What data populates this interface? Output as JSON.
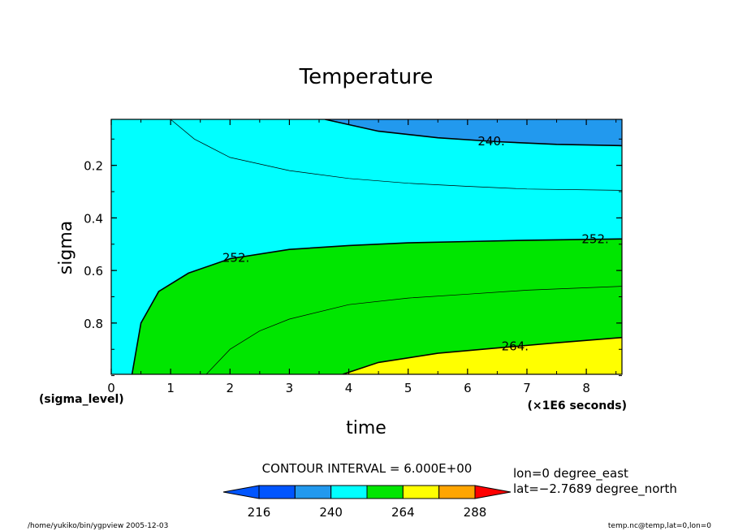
{
  "chart_data": {
    "type": "contour",
    "title": "Temperature",
    "xlabel": "time",
    "ylabel": "sigma",
    "x_units_note": "(×1E6 seconds)",
    "y_units_note": "(sigma_level)",
    "xlim": [
      0,
      8.6
    ],
    "ylim_inverted": [
      0.025,
      0.995
    ],
    "x_ticks": [
      "0",
      "1",
      "2",
      "3",
      "4",
      "5",
      "6",
      "7",
      "8"
    ],
    "y_ticks": [
      "0.2",
      "0.4",
      "0.6",
      "0.8"
    ],
    "contour_interval": 6,
    "contour_levels": [
      {
        "level": 240,
        "label": "240.",
        "labeled": true,
        "points": [
          [
            3.6,
            0.025
          ],
          [
            4.5,
            0.07
          ],
          [
            5.5,
            0.095
          ],
          [
            6.5,
            0.11
          ],
          [
            7.5,
            0.12
          ],
          [
            8.6,
            0.125
          ]
        ]
      },
      {
        "level": 246,
        "label": "",
        "labeled": false,
        "points": [
          [
            1.0,
            0.025
          ],
          [
            1.4,
            0.1
          ],
          [
            2.0,
            0.17
          ],
          [
            3.0,
            0.22
          ],
          [
            4.0,
            0.25
          ],
          [
            5.0,
            0.268
          ],
          [
            6.0,
            0.28
          ],
          [
            7.0,
            0.29
          ],
          [
            8.6,
            0.295
          ]
        ]
      },
      {
        "level": 252,
        "label": "252.",
        "labeled": true,
        "points": [
          [
            0.35,
            0.995
          ],
          [
            0.5,
            0.8
          ],
          [
            0.8,
            0.68
          ],
          [
            1.3,
            0.61
          ],
          [
            2.0,
            0.555
          ],
          [
            3.0,
            0.52
          ],
          [
            4.0,
            0.505
          ],
          [
            5.0,
            0.495
          ],
          [
            6.0,
            0.49
          ],
          [
            7.0,
            0.485
          ],
          [
            8.6,
            0.48
          ]
        ]
      },
      {
        "level": 258,
        "label": "",
        "labeled": false,
        "points": [
          [
            1.6,
            0.995
          ],
          [
            2.0,
            0.9
          ],
          [
            2.5,
            0.83
          ],
          [
            3.0,
            0.785
          ],
          [
            4.0,
            0.73
          ],
          [
            5.0,
            0.705
          ],
          [
            6.0,
            0.69
          ],
          [
            7.0,
            0.675
          ],
          [
            8.6,
            0.66
          ]
        ]
      },
      {
        "level": 264,
        "label": "264.",
        "labeled": true,
        "points": [
          [
            3.9,
            0.995
          ],
          [
            4.5,
            0.95
          ],
          [
            5.5,
            0.915
          ],
          [
            6.5,
            0.895
          ],
          [
            7.5,
            0.875
          ],
          [
            8.6,
            0.855
          ]
        ]
      }
    ],
    "color_scale": {
      "values": [
        216,
        228,
        240,
        252,
        264,
        276,
        288
      ],
      "tick_labels": [
        "216",
        "240",
        "264",
        "288"
      ],
      "colors": [
        "#0055ff",
        "#2299ee",
        "#00ffff",
        "#00e600",
        "#ffff00",
        "#ffa500",
        "#ff0000"
      ]
    },
    "annotations": {
      "contour_interval_text": "CONTOUR INTERVAL = 6.000E+00",
      "lon_text": "lon=0 degree_east",
      "lat_text": "lat=−2.7689 degree_north",
      "footer_left": "/home/yukiko/bin/ygpview   2005-12-03",
      "footer_right": "temp.nc@temp,lat=0,lon=0"
    }
  }
}
